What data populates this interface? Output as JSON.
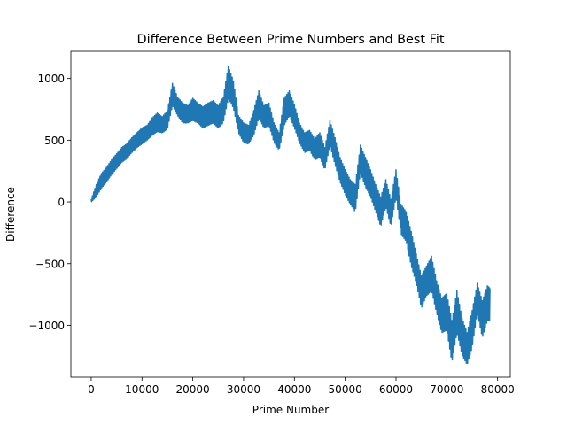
{
  "chart_data": {
    "type": "line",
    "title": "Difference Between Prime Numbers and Best Fit",
    "xlabel": "Prime Number",
    "ylabel": "Difference",
    "xlim": [
      -4000,
      82500
    ],
    "ylim": [
      -1420,
      1220
    ],
    "x_ticks": [
      0,
      10000,
      20000,
      30000,
      40000,
      50000,
      60000,
      70000,
      80000
    ],
    "x_tick_labels": [
      "0",
      "10000",
      "20000",
      "30000",
      "40000",
      "50000",
      "60000",
      "70000",
      "80000"
    ],
    "y_ticks": [
      -1000,
      -500,
      0,
      500,
      1000
    ],
    "y_tick_labels": [
      "−1000",
      "−500",
      "0",
      "500",
      "1000"
    ],
    "grid": false,
    "series": [
      {
        "color": "#1f77b4",
        "x": [
          0,
          1000,
          2000,
          3000,
          4000,
          5000,
          6000,
          7000,
          8000,
          9000,
          10000,
          11000,
          12000,
          13000,
          14000,
          15000,
          16000,
          17000,
          18000,
          19000,
          20000,
          21000,
          22000,
          23000,
          24000,
          25000,
          26000,
          27000,
          28000,
          29000,
          30000,
          31000,
          32000,
          33000,
          34000,
          35000,
          36000,
          37000,
          38000,
          39000,
          40000,
          41000,
          42000,
          43000,
          44000,
          45000,
          46000,
          47000,
          48000,
          49000,
          50000,
          51000,
          52000,
          53000,
          54000,
          55000,
          56000,
          57000,
          58000,
          59000,
          60000,
          61000,
          62000,
          63000,
          64000,
          65000,
          66000,
          67000,
          68000,
          69000,
          70000,
          71000,
          72000,
          73000,
          74000,
          75000,
          76000,
          77000,
          78000,
          78498
        ],
        "y": [
          0,
          100,
          180,
          220,
          280,
          330,
          380,
          400,
          460,
          500,
          530,
          560,
          600,
          640,
          620,
          660,
          900,
          780,
          720,
          700,
          760,
          720,
          680,
          720,
          740,
          700,
          760,
          1040,
          900,
          620,
          560,
          540,
          640,
          820,
          680,
          720,
          560,
          480,
          740,
          820,
          700,
          560,
          480,
          500,
          420,
          460,
          340,
          580,
          420,
          260,
          160,
          80,
          40,
          360,
          260,
          160,
          40,
          -60,
          80,
          -80,
          160,
          -120,
          -180,
          -360,
          -520,
          -720,
          -640,
          -560,
          -760,
          -900,
          -880,
          -1120,
          -860,
          -1080,
          -1180,
          -1020,
          -760,
          -940,
          -820,
          -820
        ],
        "y_low": [
          0,
          40,
          110,
          160,
          220,
          270,
          320,
          350,
          400,
          440,
          470,
          500,
          540,
          570,
          560,
          590,
          780,
          700,
          640,
          640,
          660,
          640,
          600,
          620,
          640,
          600,
          640,
          840,
          760,
          560,
          480,
          470,
          540,
          680,
          600,
          620,
          480,
          420,
          620,
          700,
          600,
          480,
          400,
          420,
          340,
          360,
          260,
          460,
          300,
          160,
          60,
          -20,
          -80,
          240,
          120,
          40,
          -80,
          -200,
          -40,
          -200,
          40,
          -260,
          -320,
          -520,
          -660,
          -860,
          -760,
          -720,
          -900,
          -1060,
          -1040,
          -1300,
          -1060,
          -1240,
          -1320,
          -1180,
          -900,
          -1100,
          -960,
          -960
        ],
        "y_high": [
          20,
          140,
          230,
          280,
          340,
          390,
          440,
          470,
          520,
          560,
          600,
          620,
          680,
          720,
          690,
          740,
          960,
          850,
          800,
          780,
          840,
          800,
          770,
          800,
          820,
          780,
          850,
          1100,
          980,
          700,
          640,
          620,
          740,
          900,
          780,
          800,
          640,
          560,
          840,
          900,
          790,
          640,
          560,
          580,
          510,
          560,
          440,
          660,
          520,
          360,
          260,
          180,
          140,
          460,
          360,
          260,
          140,
          40,
          180,
          20,
          260,
          -20,
          -80,
          -240,
          -420,
          -600,
          -520,
          -440,
          -640,
          -780,
          -740,
          -960,
          -720,
          -940,
          -1060,
          -880,
          -660,
          -800,
          -680,
          -700
        ]
      }
    ]
  }
}
